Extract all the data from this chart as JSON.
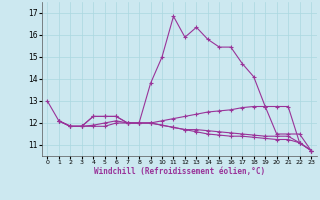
{
  "xlabel": "Windchill (Refroidissement éolien,°C)",
  "ylabel": "",
  "bg_color": "#cce8f0",
  "line_color": "#993399",
  "grid_color": "#aad8e0",
  "xlim": [
    -0.5,
    23.5
  ],
  "ylim": [
    10.5,
    17.5
  ],
  "yticks": [
    11,
    12,
    13,
    14,
    15,
    16,
    17
  ],
  "xticks": [
    0,
    1,
    2,
    3,
    4,
    5,
    6,
    7,
    8,
    9,
    10,
    11,
    12,
    13,
    14,
    15,
    16,
    17,
    18,
    19,
    20,
    21,
    22,
    23
  ],
  "lines": [
    {
      "x": [
        0,
        1,
        2,
        3,
        4,
        5,
        6,
        7,
        8,
        9,
        10,
        11,
        12,
        13,
        14,
        15,
        16,
        17,
        18,
        19,
        20,
        21,
        22,
        23
      ],
      "y": [
        13.0,
        12.1,
        11.85,
        11.85,
        12.3,
        12.3,
        12.3,
        12.0,
        12.0,
        13.8,
        15.0,
        16.85,
        15.9,
        16.35,
        15.8,
        15.45,
        15.45,
        14.7,
        14.1,
        12.75,
        12.75,
        12.75,
        11.1,
        10.75
      ]
    },
    {
      "x": [
        1,
        2,
        3,
        4,
        5,
        6,
        7,
        8,
        9,
        10,
        11,
        12,
        13,
        14,
        15,
        16,
        17,
        18,
        19,
        20,
        21,
        22,
        23
      ],
      "y": [
        12.1,
        11.85,
        11.85,
        12.3,
        12.3,
        12.3,
        12.0,
        12.0,
        12.0,
        12.1,
        12.2,
        12.3,
        12.4,
        12.5,
        12.55,
        12.6,
        12.7,
        12.75,
        12.75,
        11.5,
        11.5,
        11.5,
        10.75
      ]
    },
    {
      "x": [
        1,
        2,
        3,
        4,
        5,
        6,
        7,
        8,
        9,
        10,
        11,
        12,
        13,
        14,
        15,
        16,
        17,
        18,
        19,
        20,
        21,
        22,
        23
      ],
      "y": [
        12.1,
        11.85,
        11.85,
        11.85,
        11.85,
        12.0,
        12.0,
        12.0,
        12.0,
        11.9,
        11.8,
        11.7,
        11.6,
        11.5,
        11.45,
        11.4,
        11.4,
        11.35,
        11.3,
        11.25,
        11.25,
        11.1,
        10.75
      ]
    },
    {
      "x": [
        1,
        2,
        3,
        4,
        5,
        6,
        7,
        8,
        9,
        10,
        11,
        12,
        13,
        14,
        15,
        16,
        17,
        18,
        19,
        20,
        21,
        22,
        23
      ],
      "y": [
        12.1,
        11.85,
        11.85,
        11.9,
        12.0,
        12.1,
        12.0,
        12.0,
        12.0,
        11.9,
        11.8,
        11.7,
        11.7,
        11.65,
        11.6,
        11.55,
        11.5,
        11.45,
        11.4,
        11.4,
        11.4,
        11.1,
        10.75
      ]
    }
  ]
}
